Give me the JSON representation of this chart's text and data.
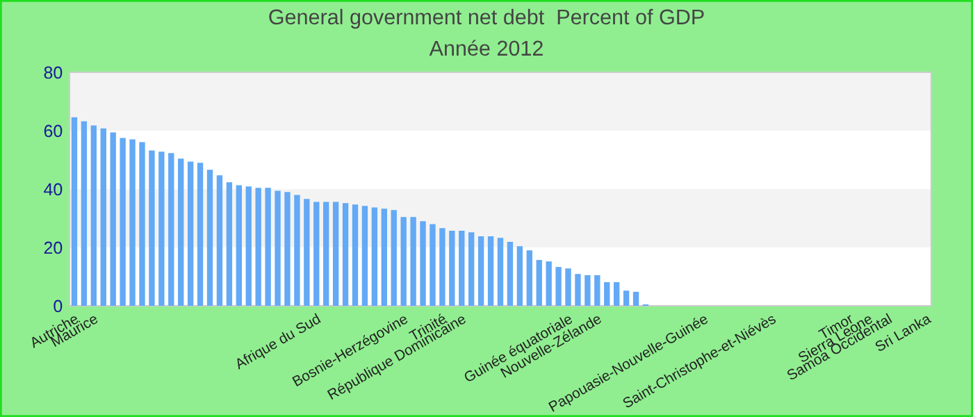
{
  "chart_data": {
    "type": "bar",
    "title": "General government net debt  Percent of GDP",
    "subtitle": "Année 2012",
    "categories": [
      "Autriche",
      null,
      "Maurice",
      null,
      null,
      null,
      null,
      null,
      null,
      null,
      null,
      null,
      null,
      null,
      null,
      null,
      null,
      null,
      null,
      null,
      null,
      null,
      null,
      null,
      null,
      "Afrique du Sud",
      null,
      null,
      null,
      null,
      null,
      null,
      null,
      null,
      "Bosnie-Herzégovine",
      null,
      null,
      null,
      "Trinité",
      null,
      "République Dominicaine",
      null,
      null,
      null,
      null,
      null,
      null,
      null,
      null,
      null,
      null,
      "Guinée équatoriale",
      null,
      null,
      "Nouvelle-Zélande",
      null,
      null,
      null,
      null,
      null,
      null,
      null,
      null,
      null,
      null,
      "Papouasie-Nouvelle-Guinée",
      null,
      null,
      null,
      null,
      null,
      null,
      "Saint-Christophe-et-Niévès",
      null,
      null,
      null,
      null,
      null,
      null,
      null,
      "Timor",
      null,
      "Sierra Leone",
      null,
      "Samoa Occidental",
      null,
      null,
      null,
      "Sri Lanka"
    ],
    "values": [
      64.6,
      63.2,
      61.8,
      60.8,
      59.4,
      57.5,
      57.0,
      56.1,
      53.2,
      52.8,
      52.3,
      50.4,
      49.4,
      49.0,
      46.6,
      44.7,
      42.3,
      41.3,
      40.9,
      40.4,
      40.4,
      39.4,
      39.0,
      38.0,
      36.6,
      35.6,
      35.6,
      35.6,
      35.2,
      34.7,
      34.2,
      33.7,
      33.3,
      32.8,
      30.4,
      30.4,
      29.0,
      28.0,
      26.6,
      25.7,
      25.7,
      25.2,
      23.8,
      23.8,
      23.3,
      21.9,
      20.4,
      19.0,
      15.7,
      15.2,
      13.3,
      12.8,
      10.9,
      10.5,
      10.5,
      8.1,
      8.1,
      5.2,
      4.8,
      0.5,
      null,
      null,
      null,
      null,
      null,
      null,
      null,
      null,
      null,
      null,
      null,
      null,
      null,
      null,
      null,
      null,
      null,
      null,
      null,
      null,
      null,
      null,
      null,
      null,
      null,
      null,
      null,
      null,
      null
    ],
    "color": "#63a9f5",
    "ylim": [
      0,
      80
    ],
    "yticks": [
      0,
      20,
      40,
      60,
      80
    ]
  }
}
